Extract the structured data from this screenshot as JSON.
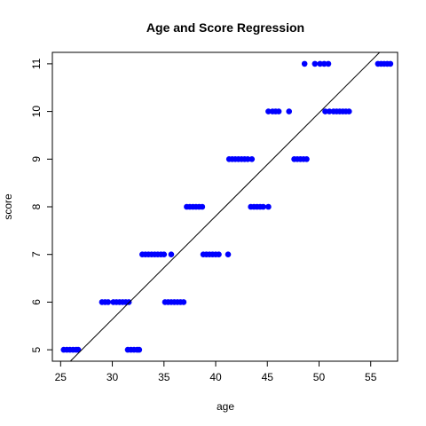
{
  "chart_data": {
    "type": "scatter",
    "title": "Age and Score Regression",
    "xlabel": "age",
    "ylabel": "score",
    "xlim": [
      24.2,
      57.6
    ],
    "ylim": [
      4.76,
      11.24
    ],
    "xticks": [
      25,
      30,
      35,
      40,
      45,
      50,
      55
    ],
    "yticks": [
      5,
      6,
      7,
      8,
      9,
      10,
      11
    ],
    "point_color": "#0000ff",
    "line_color": "#000000",
    "regression_line": {
      "x": [
        25.2,
        56.6
      ],
      "y": [
        4.6,
        11.4
      ]
    },
    "points": [
      [
        25.3,
        5
      ],
      [
        25.6,
        5
      ],
      [
        25.9,
        5
      ],
      [
        26.2,
        5
      ],
      [
        26.5,
        5
      ],
      [
        26.7,
        5
      ],
      [
        29.0,
        6
      ],
      [
        29.3,
        6
      ],
      [
        29.6,
        6
      ],
      [
        30.1,
        6
      ],
      [
        30.4,
        6
      ],
      [
        30.7,
        6
      ],
      [
        31.0,
        6
      ],
      [
        31.3,
        6
      ],
      [
        31.6,
        6
      ],
      [
        31.5,
        5
      ],
      [
        31.8,
        5
      ],
      [
        32.1,
        5
      ],
      [
        32.4,
        5
      ],
      [
        32.6,
        5
      ],
      [
        32.9,
        7
      ],
      [
        33.2,
        7
      ],
      [
        33.5,
        7
      ],
      [
        33.8,
        7
      ],
      [
        34.1,
        7
      ],
      [
        34.4,
        7
      ],
      [
        34.7,
        7
      ],
      [
        35.0,
        7
      ],
      [
        35.7,
        7
      ],
      [
        35.1,
        6
      ],
      [
        35.4,
        6
      ],
      [
        35.7,
        6
      ],
      [
        36.0,
        6
      ],
      [
        36.3,
        6
      ],
      [
        36.6,
        6
      ],
      [
        36.9,
        6
      ],
      [
        37.2,
        8
      ],
      [
        37.5,
        8
      ],
      [
        37.8,
        8
      ],
      [
        38.1,
        8
      ],
      [
        38.4,
        8
      ],
      [
        38.7,
        8
      ],
      [
        38.8,
        7
      ],
      [
        39.1,
        7
      ],
      [
        39.4,
        7
      ],
      [
        39.7,
        7
      ],
      [
        40.0,
        7
      ],
      [
        40.3,
        7
      ],
      [
        41.2,
        7
      ],
      [
        41.3,
        9
      ],
      [
        41.6,
        9
      ],
      [
        41.9,
        9
      ],
      [
        42.2,
        9
      ],
      [
        42.5,
        9
      ],
      [
        42.8,
        9
      ],
      [
        43.1,
        9
      ],
      [
        43.5,
        9
      ],
      [
        43.4,
        8
      ],
      [
        43.7,
        8
      ],
      [
        44.0,
        8
      ],
      [
        44.3,
        8
      ],
      [
        44.6,
        8
      ],
      [
        45.1,
        8
      ],
      [
        45.1,
        10
      ],
      [
        45.5,
        10
      ],
      [
        45.8,
        10
      ],
      [
        46.1,
        10
      ],
      [
        47.1,
        10
      ],
      [
        47.6,
        9
      ],
      [
        47.9,
        9
      ],
      [
        48.2,
        9
      ],
      [
        48.5,
        9
      ],
      [
        48.8,
        9
      ],
      [
        48.6,
        11
      ],
      [
        49.6,
        11
      ],
      [
        50.1,
        11
      ],
      [
        50.5,
        11
      ],
      [
        50.9,
        11
      ],
      [
        50.6,
        10
      ],
      [
        51.0,
        10
      ],
      [
        51.4,
        10
      ],
      [
        51.7,
        10
      ],
      [
        52.0,
        10
      ],
      [
        52.3,
        10
      ],
      [
        52.6,
        10
      ],
      [
        52.9,
        10
      ],
      [
        55.7,
        11
      ],
      [
        56.0,
        11
      ],
      [
        56.3,
        11
      ],
      [
        56.6,
        11
      ],
      [
        56.9,
        11
      ]
    ]
  }
}
